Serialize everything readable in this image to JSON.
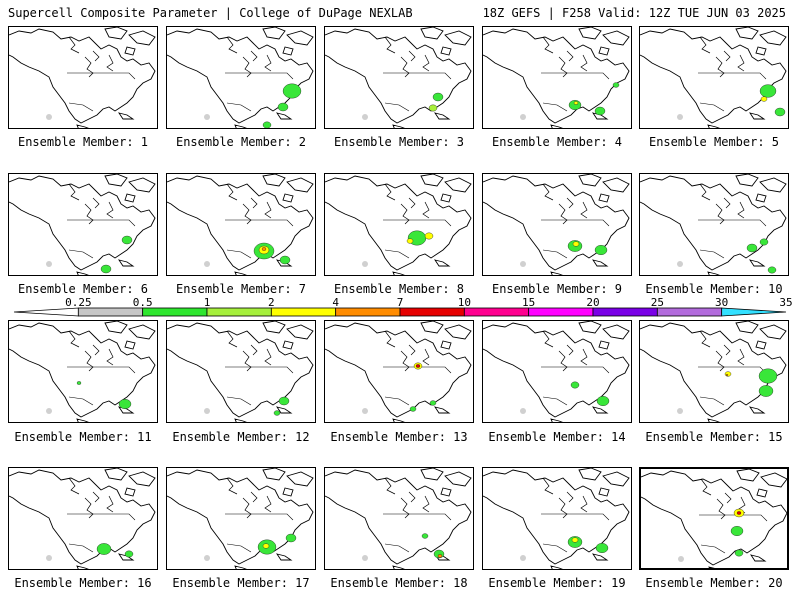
{
  "header": {
    "left": "Supercell Composite Parameter | College of DuPage NEXLAB",
    "right": "18Z GEFS | F258 Valid: 12Z TUE JUN 03 2025"
  },
  "members": [
    {
      "caption": "Ensemble Member: 1",
      "highlight": false,
      "blobs": []
    },
    {
      "caption": "Ensemble Member: 2",
      "highlight": false,
      "blobs": [
        {
          "x": 125,
          "y": 64,
          "r": 9,
          "level": "green"
        },
        {
          "x": 116,
          "y": 80,
          "r": 5,
          "level": "green"
        },
        {
          "x": 100,
          "y": 98,
          "r": 4,
          "level": "green"
        }
      ]
    },
    {
      "caption": "Ensemble Member: 3",
      "highlight": false,
      "blobs": [
        {
          "x": 113,
          "y": 70,
          "r": 5,
          "level": "green"
        },
        {
          "x": 108,
          "y": 81,
          "r": 4,
          "level": "lime"
        }
      ]
    },
    {
      "caption": "Ensemble Member: 4",
      "highlight": false,
      "blobs": [
        {
          "x": 92,
          "y": 78,
          "r": 6,
          "level": "green"
        },
        {
          "x": 93,
          "y": 76,
          "r": 2,
          "level": "yellow"
        },
        {
          "x": 117,
          "y": 84,
          "r": 5,
          "level": "green"
        },
        {
          "x": 133,
          "y": 58,
          "r": 3,
          "level": "green"
        }
      ]
    },
    {
      "caption": "Ensemble Member: 5",
      "highlight": false,
      "blobs": [
        {
          "x": 128,
          "y": 64,
          "r": 8,
          "level": "green"
        },
        {
          "x": 124,
          "y": 72,
          "r": 3,
          "level": "yellow"
        },
        {
          "x": 140,
          "y": 85,
          "r": 5,
          "level": "green"
        }
      ]
    },
    {
      "caption": "Ensemble Member: 6",
      "highlight": false,
      "blobs": [
        {
          "x": 118,
          "y": 66,
          "r": 5,
          "level": "green"
        },
        {
          "x": 97,
          "y": 95,
          "r": 5,
          "level": "green"
        }
      ]
    },
    {
      "caption": "Ensemble Member: 7",
      "highlight": false,
      "blobs": [
        {
          "x": 97,
          "y": 77,
          "r": 10,
          "level": "green"
        },
        {
          "x": 97,
          "y": 76,
          "r": 5,
          "level": "yellow"
        },
        {
          "x": 97,
          "y": 75,
          "r": 2,
          "level": "orange"
        },
        {
          "x": 118,
          "y": 86,
          "r": 5,
          "level": "green"
        }
      ]
    },
    {
      "caption": "Ensemble Member: 8",
      "highlight": false,
      "blobs": [
        {
          "x": 92,
          "y": 64,
          "r": 9,
          "level": "green"
        },
        {
          "x": 104,
          "y": 62,
          "r": 4,
          "level": "yellow"
        },
        {
          "x": 85,
          "y": 67,
          "r": 3,
          "level": "yellow"
        }
      ]
    },
    {
      "caption": "Ensemble Member: 9",
      "highlight": false,
      "blobs": [
        {
          "x": 92,
          "y": 72,
          "r": 7,
          "level": "green"
        },
        {
          "x": 93,
          "y": 70,
          "r": 3,
          "level": "yellow"
        },
        {
          "x": 118,
          "y": 76,
          "r": 6,
          "level": "green"
        }
      ]
    },
    {
      "caption": "Ensemble Member: 10",
      "highlight": false,
      "blobs": [
        {
          "x": 112,
          "y": 74,
          "r": 5,
          "level": "green"
        },
        {
          "x": 124,
          "y": 68,
          "r": 4,
          "level": "green"
        },
        {
          "x": 132,
          "y": 96,
          "r": 4,
          "level": "green"
        }
      ]
    },
    {
      "caption": "Ensemble Member: 11",
      "highlight": false,
      "blobs": [
        {
          "x": 116,
          "y": 83,
          "r": 6,
          "level": "green"
        },
        {
          "x": 70,
          "y": 62,
          "r": 2,
          "level": "green"
        }
      ]
    },
    {
      "caption": "Ensemble Member: 12",
      "highlight": false,
      "blobs": [
        {
          "x": 117,
          "y": 80,
          "r": 5,
          "level": "green"
        },
        {
          "x": 110,
          "y": 92,
          "r": 3,
          "level": "green"
        }
      ]
    },
    {
      "caption": "Ensemble Member: 13",
      "highlight": false,
      "blobs": [
        {
          "x": 93,
          "y": 45,
          "r": 4,
          "level": "yellow"
        },
        {
          "x": 93,
          "y": 45,
          "r": 2,
          "level": "red"
        },
        {
          "x": 88,
          "y": 88,
          "r": 3,
          "level": "green"
        },
        {
          "x": 108,
          "y": 82,
          "r": 3,
          "level": "green"
        }
      ]
    },
    {
      "caption": "Ensemble Member: 14",
      "highlight": false,
      "blobs": [
        {
          "x": 92,
          "y": 64,
          "r": 4,
          "level": "green"
        },
        {
          "x": 120,
          "y": 80,
          "r": 6,
          "level": "green"
        }
      ]
    },
    {
      "caption": "Ensemble Member: 15",
      "highlight": false,
      "blobs": [
        {
          "x": 128,
          "y": 55,
          "r": 9,
          "level": "green"
        },
        {
          "x": 126,
          "y": 70,
          "r": 7,
          "level": "green"
        },
        {
          "x": 88,
          "y": 53,
          "r": 3,
          "level": "yellow"
        },
        {
          "x": 87,
          "y": 54,
          "r": 1,
          "level": "orange"
        }
      ]
    },
    {
      "caption": "Ensemble Member: 16",
      "highlight": false,
      "blobs": [
        {
          "x": 95,
          "y": 81,
          "r": 7,
          "level": "green"
        },
        {
          "x": 120,
          "y": 86,
          "r": 4,
          "level": "green"
        }
      ]
    },
    {
      "caption": "Ensemble Member: 17",
      "highlight": false,
      "blobs": [
        {
          "x": 100,
          "y": 79,
          "r": 9,
          "level": "green"
        },
        {
          "x": 99,
          "y": 78,
          "r": 3,
          "level": "yellow"
        },
        {
          "x": 124,
          "y": 70,
          "r": 5,
          "level": "green"
        }
      ]
    },
    {
      "caption": "Ensemble Member: 18",
      "highlight": false,
      "blobs": [
        {
          "x": 114,
          "y": 86,
          "r": 5,
          "level": "green"
        },
        {
          "x": 115,
          "y": 88,
          "r": 2,
          "level": "orange"
        },
        {
          "x": 100,
          "y": 68,
          "r": 3,
          "level": "green"
        }
      ]
    },
    {
      "caption": "Ensemble Member: 19",
      "highlight": false,
      "blobs": [
        {
          "x": 92,
          "y": 74,
          "r": 7,
          "level": "green"
        },
        {
          "x": 92,
          "y": 72,
          "r": 3,
          "level": "yellow"
        },
        {
          "x": 119,
          "y": 80,
          "r": 6,
          "level": "green"
        }
      ]
    },
    {
      "caption": "Ensemble Member: 20",
      "highlight": true,
      "blobs": [
        {
          "x": 98,
          "y": 44,
          "r": 5,
          "level": "yellow"
        },
        {
          "x": 98,
          "y": 44,
          "r": 2,
          "level": "red"
        },
        {
          "x": 96,
          "y": 62,
          "r": 6,
          "level": "green"
        },
        {
          "x": 98,
          "y": 84,
          "r": 4,
          "level": "green"
        }
      ]
    }
  ],
  "legend": {
    "labels": [
      "0.25",
      "0.5",
      "1",
      "2",
      "4",
      "7",
      "10",
      "15",
      "20",
      "25",
      "30",
      "35"
    ],
    "colors": [
      "#ffffff",
      "#c6c6c6",
      "#2ee62e",
      "#a6f03c",
      "#ffff00",
      "#ff8c00",
      "#e60000",
      "#ff0090",
      "#ff00ff",
      "#7a00e6",
      "#b26bdc",
      "#33e0ff"
    ]
  },
  "level_colors": {
    "green": "#39e639",
    "lime": "#a8ef3a",
    "yellow": "#ffff00",
    "orange": "#ff8c00",
    "red": "#e00000"
  }
}
